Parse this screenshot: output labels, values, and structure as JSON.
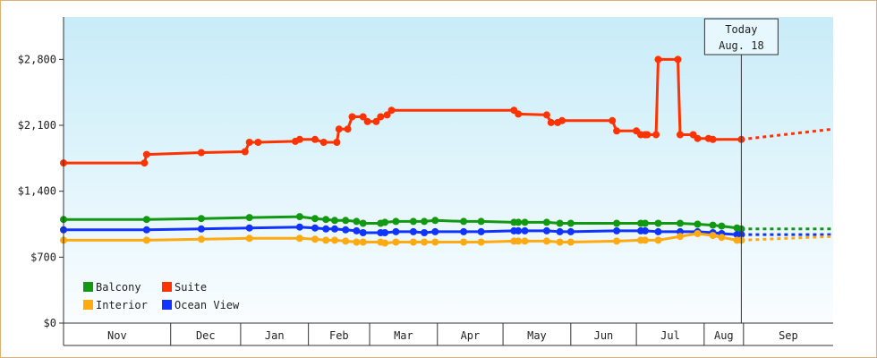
{
  "chart_data": {
    "type": "line",
    "title": "",
    "xlabel": "",
    "ylabel": "",
    "y_ticks": [
      "$0",
      "$700",
      "$1,400",
      "$2,100",
      "$2,800"
    ],
    "y_tick_values": [
      0,
      700,
      1400,
      2100,
      2800
    ],
    "ylim": [
      0,
      3250
    ],
    "x_axis": {
      "start": "2020-10-12",
      "end": "2021-09-29",
      "months": [
        {
          "label": "Nov",
          "start": "2020-10-12",
          "end": "2020-11-30"
        },
        {
          "label": "Dec",
          "start": "2020-11-30",
          "end": "2021-01-01"
        },
        {
          "label": "Jan",
          "start": "2021-01-01",
          "end": "2021-02-01"
        },
        {
          "label": "Feb",
          "start": "2021-02-01",
          "end": "2021-03-01"
        },
        {
          "label": "Mar",
          "start": "2021-03-01",
          "end": "2021-04-01"
        },
        {
          "label": "Apr",
          "start": "2021-04-01",
          "end": "2021-05-01"
        },
        {
          "label": "May",
          "start": "2021-05-01",
          "end": "2021-06-01"
        },
        {
          "label": "Jun",
          "start": "2021-06-01",
          "end": "2021-07-01"
        },
        {
          "label": "Jul",
          "start": "2021-07-01",
          "end": "2021-08-01"
        },
        {
          "label": "Aug",
          "start": "2021-08-01",
          "end": "2021-08-19"
        },
        {
          "label": "Sep",
          "start": "2021-08-19",
          "end": "2021-09-29"
        }
      ]
    },
    "today": {
      "line1": "Today",
      "line2": "Aug. 18",
      "date": "2021-08-18"
    },
    "grid": false,
    "legend_position": "bottom-left",
    "series": [
      {
        "name": "Suite",
        "color": "#ff3300",
        "points": [
          [
            "2020-10-12",
            1700
          ],
          [
            "2020-11-18",
            1700
          ],
          [
            "2020-11-19",
            1790
          ],
          [
            "2020-12-14",
            1810
          ],
          [
            "2021-01-03",
            1820
          ],
          [
            "2021-01-05",
            1920
          ],
          [
            "2021-01-09",
            1920
          ],
          [
            "2021-01-26",
            1930
          ],
          [
            "2021-01-28",
            1950
          ],
          [
            "2021-02-04",
            1950
          ],
          [
            "2021-02-08",
            1920
          ],
          [
            "2021-02-14",
            1920
          ],
          [
            "2021-02-15",
            2060
          ],
          [
            "2021-02-19",
            2060
          ],
          [
            "2021-02-21",
            2190
          ],
          [
            "2021-02-26",
            2190
          ],
          [
            "2021-02-28",
            2140
          ],
          [
            "2021-03-04",
            2140
          ],
          [
            "2021-03-06",
            2190
          ],
          [
            "2021-03-09",
            2210
          ],
          [
            "2021-03-11",
            2260
          ],
          [
            "2021-05-06",
            2260
          ],
          [
            "2021-05-08",
            2220
          ],
          [
            "2021-05-21",
            2210
          ],
          [
            "2021-05-23",
            2130
          ],
          [
            "2021-05-26",
            2130
          ],
          [
            "2021-05-28",
            2150
          ],
          [
            "2021-06-20",
            2150
          ],
          [
            "2021-06-22",
            2040
          ],
          [
            "2021-07-01",
            2040
          ],
          [
            "2021-07-03",
            2000
          ],
          [
            "2021-07-05",
            2000
          ],
          [
            "2021-07-06",
            2000
          ],
          [
            "2021-07-10",
            2000
          ],
          [
            "2021-07-11",
            2800
          ],
          [
            "2021-07-20",
            2800
          ],
          [
            "2021-07-21",
            2000
          ],
          [
            "2021-07-27",
            2000
          ],
          [
            "2021-07-29",
            1960
          ],
          [
            "2021-08-03",
            1960
          ],
          [
            "2021-08-05",
            1950
          ],
          [
            "2021-08-18",
            1950
          ]
        ],
        "projected": [
          [
            "2021-08-18",
            1950
          ],
          [
            "2021-09-29",
            2060
          ]
        ]
      },
      {
        "name": "Balcony",
        "color": "#119911",
        "points": [
          [
            "2020-10-12",
            1100
          ],
          [
            "2020-11-19",
            1100
          ],
          [
            "2020-12-14",
            1110
          ],
          [
            "2021-01-05",
            1120
          ],
          [
            "2021-01-28",
            1130
          ],
          [
            "2021-02-04",
            1110
          ],
          [
            "2021-02-09",
            1100
          ],
          [
            "2021-02-13",
            1090
          ],
          [
            "2021-02-18",
            1090
          ],
          [
            "2021-02-23",
            1080
          ],
          [
            "2021-02-26",
            1060
          ],
          [
            "2021-03-06",
            1060
          ],
          [
            "2021-03-08",
            1070
          ],
          [
            "2021-03-13",
            1080
          ],
          [
            "2021-03-21",
            1080
          ],
          [
            "2021-03-26",
            1080
          ],
          [
            "2021-03-31",
            1090
          ],
          [
            "2021-04-13",
            1080
          ],
          [
            "2021-04-21",
            1080
          ],
          [
            "2021-05-06",
            1070
          ],
          [
            "2021-05-08",
            1070
          ],
          [
            "2021-05-11",
            1070
          ],
          [
            "2021-05-21",
            1070
          ],
          [
            "2021-05-27",
            1060
          ],
          [
            "2021-06-01",
            1060
          ],
          [
            "2021-06-22",
            1060
          ],
          [
            "2021-07-03",
            1060
          ],
          [
            "2021-07-05",
            1060
          ],
          [
            "2021-07-11",
            1060
          ],
          [
            "2021-07-21",
            1060
          ],
          [
            "2021-07-29",
            1050
          ],
          [
            "2021-08-05",
            1040
          ],
          [
            "2021-08-09",
            1030
          ],
          [
            "2021-08-16",
            1010
          ],
          [
            "2021-08-18",
            1000
          ]
        ],
        "projected": [
          [
            "2021-08-18",
            1000
          ],
          [
            "2021-09-29",
            1000
          ]
        ]
      },
      {
        "name": "Ocean View",
        "color": "#1133ff",
        "points": [
          [
            "2020-10-12",
            990
          ],
          [
            "2020-11-19",
            990
          ],
          [
            "2020-12-14",
            1000
          ],
          [
            "2021-01-05",
            1010
          ],
          [
            "2021-01-28",
            1020
          ],
          [
            "2021-02-04",
            1010
          ],
          [
            "2021-02-09",
            1000
          ],
          [
            "2021-02-13",
            1000
          ],
          [
            "2021-02-18",
            990
          ],
          [
            "2021-02-23",
            980
          ],
          [
            "2021-02-26",
            960
          ],
          [
            "2021-03-06",
            960
          ],
          [
            "2021-03-08",
            960
          ],
          [
            "2021-03-13",
            970
          ],
          [
            "2021-03-21",
            970
          ],
          [
            "2021-03-26",
            960
          ],
          [
            "2021-03-31",
            970
          ],
          [
            "2021-04-13",
            970
          ],
          [
            "2021-04-21",
            970
          ],
          [
            "2021-05-06",
            980
          ],
          [
            "2021-05-08",
            980
          ],
          [
            "2021-05-11",
            980
          ],
          [
            "2021-05-21",
            980
          ],
          [
            "2021-05-27",
            970
          ],
          [
            "2021-06-01",
            970
          ],
          [
            "2021-06-22",
            980
          ],
          [
            "2021-07-03",
            980
          ],
          [
            "2021-07-05",
            980
          ],
          [
            "2021-07-11",
            970
          ],
          [
            "2021-07-21",
            970
          ],
          [
            "2021-07-29",
            970
          ],
          [
            "2021-08-05",
            960
          ],
          [
            "2021-08-09",
            950
          ],
          [
            "2021-08-16",
            940
          ],
          [
            "2021-08-18",
            940
          ]
        ],
        "projected": [
          [
            "2021-08-18",
            940
          ],
          [
            "2021-09-29",
            940
          ]
        ]
      },
      {
        "name": "Interior",
        "color": "#ffaa11",
        "points": [
          [
            "2020-10-12",
            880
          ],
          [
            "2020-11-19",
            880
          ],
          [
            "2020-12-14",
            890
          ],
          [
            "2021-01-05",
            900
          ],
          [
            "2021-01-28",
            900
          ],
          [
            "2021-02-04",
            890
          ],
          [
            "2021-02-09",
            880
          ],
          [
            "2021-02-13",
            880
          ],
          [
            "2021-02-18",
            870
          ],
          [
            "2021-02-23",
            860
          ],
          [
            "2021-02-26",
            860
          ],
          [
            "2021-03-06",
            860
          ],
          [
            "2021-03-08",
            850
          ],
          [
            "2021-03-13",
            860
          ],
          [
            "2021-03-21",
            860
          ],
          [
            "2021-03-26",
            860
          ],
          [
            "2021-03-31",
            860
          ],
          [
            "2021-04-13",
            860
          ],
          [
            "2021-04-21",
            860
          ],
          [
            "2021-05-06",
            870
          ],
          [
            "2021-05-08",
            870
          ],
          [
            "2021-05-11",
            870
          ],
          [
            "2021-05-21",
            870
          ],
          [
            "2021-05-27",
            860
          ],
          [
            "2021-06-01",
            860
          ],
          [
            "2021-06-22",
            870
          ],
          [
            "2021-07-03",
            880
          ],
          [
            "2021-07-05",
            880
          ],
          [
            "2021-07-11",
            880
          ],
          [
            "2021-07-21",
            920
          ],
          [
            "2021-07-29",
            950
          ],
          [
            "2021-08-05",
            930
          ],
          [
            "2021-08-09",
            910
          ],
          [
            "2021-08-16",
            880
          ],
          [
            "2021-08-18",
            880
          ]
        ],
        "projected": [
          [
            "2021-08-18",
            880
          ],
          [
            "2021-09-29",
            920
          ]
        ]
      }
    ],
    "legend": [
      {
        "name": "Balcony",
        "color": "#119911"
      },
      {
        "name": "Suite",
        "color": "#ff3300"
      },
      {
        "name": "Interior",
        "color": "#ffaa11"
      },
      {
        "name": "Ocean View",
        "color": "#1133ff"
      }
    ]
  }
}
